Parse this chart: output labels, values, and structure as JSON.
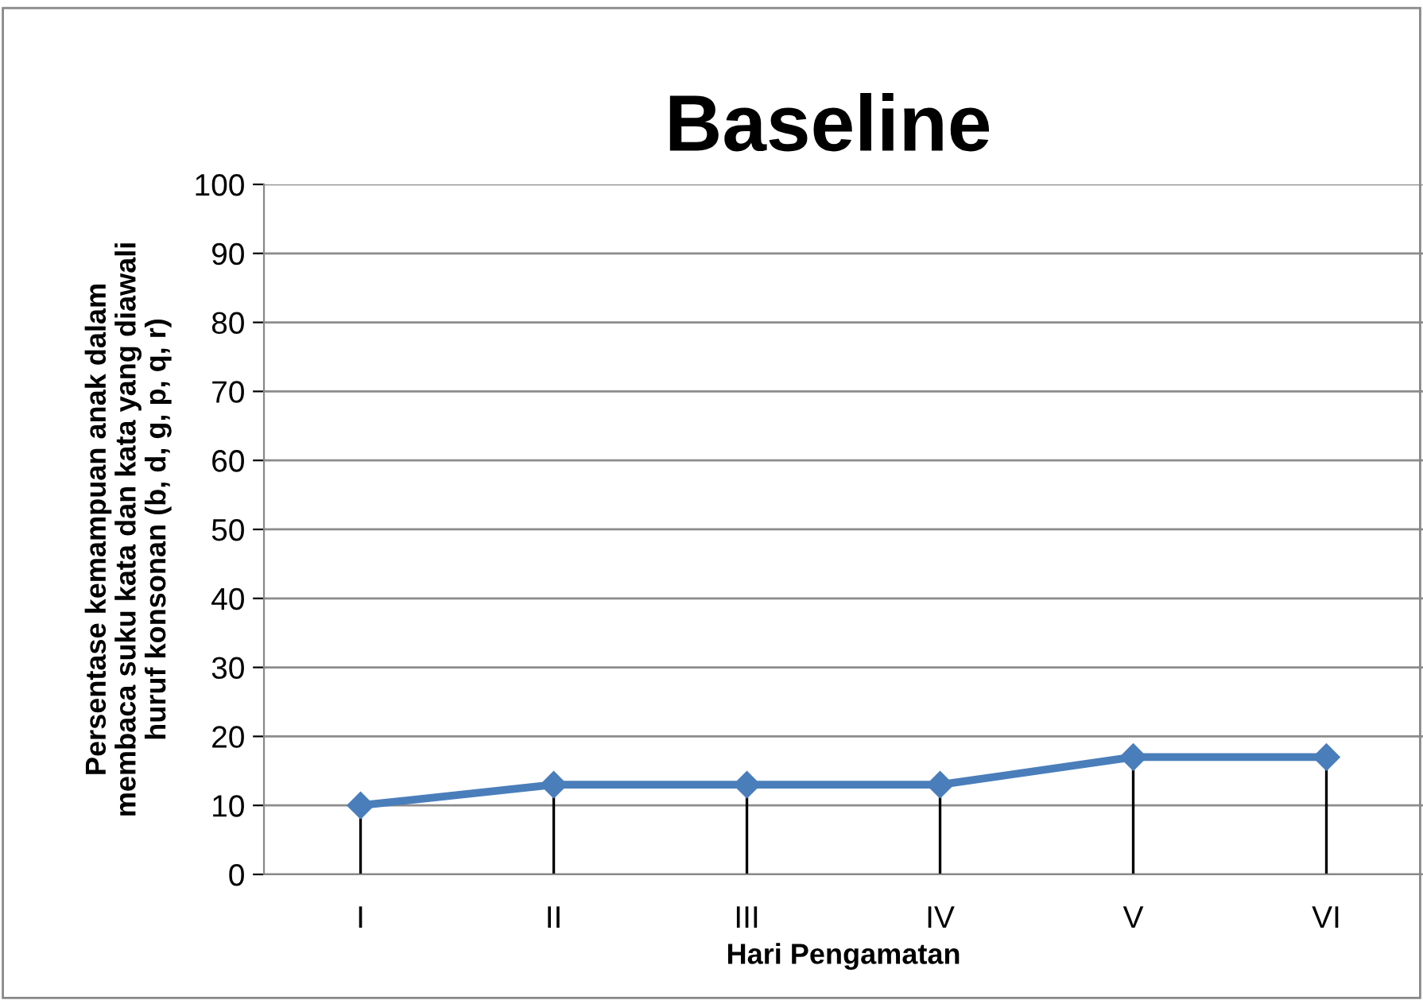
{
  "chart_data": {
    "type": "line",
    "title": "Baseline",
    "xlabel": "Hari Pengamatan",
    "ylabel": "Persentase kemampuan anak dalam\nmembaca suku kata dan kata yang diawali\nhuruf konsonan (b, d, g, p, q, r)",
    "categories": [
      "I",
      "II",
      "III",
      "IV",
      "V",
      "VI"
    ],
    "series": [
      {
        "color": "#4a7ebb",
        "values": [
          10,
          13,
          13,
          13,
          17,
          17
        ],
        "errors": [
          [
            0,
            10
          ],
          [
            0,
            13
          ],
          [
            0,
            13
          ],
          [
            0,
            13
          ],
          [
            0,
            17
          ],
          [
            0,
            17
          ]
        ]
      }
    ],
    "ylim": [
      0,
      100
    ],
    "yticks": [
      0,
      10,
      20,
      30,
      40,
      50,
      60,
      70,
      80,
      90,
      100
    ],
    "grid": "y",
    "marker": "diamond",
    "line_style": "solid"
  }
}
